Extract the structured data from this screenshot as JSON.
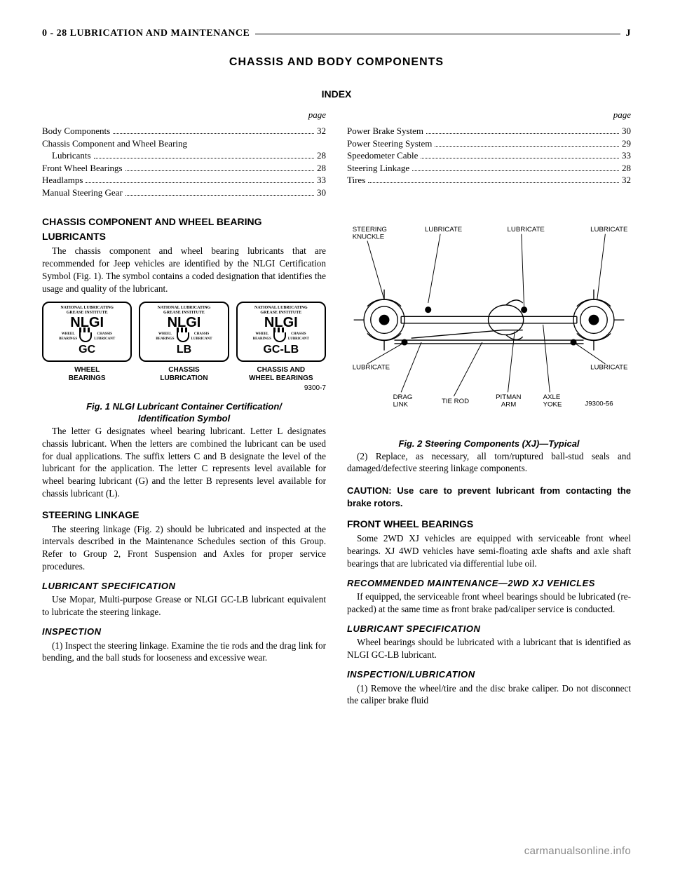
{
  "header": {
    "left": "0 - 28    LUBRICATION AND MAINTENANCE",
    "right": "J"
  },
  "title": "CHASSIS AND BODY COMPONENTS",
  "index_label": "INDEX",
  "page_label": "page",
  "index_left": [
    {
      "label": "Body Components",
      "page": "32",
      "indent": false
    },
    {
      "label": "Chassis Component and Wheel Bearing",
      "page": "",
      "indent": false
    },
    {
      "label": "Lubricants",
      "page": "28",
      "indent": true
    },
    {
      "label": "Front Wheel Bearings",
      "page": "28",
      "indent": false
    },
    {
      "label": "Headlamps",
      "page": "33",
      "indent": false
    },
    {
      "label": "Manual Steering Gear",
      "page": "30",
      "indent": false
    }
  ],
  "index_right": [
    {
      "label": "Power Brake System",
      "page": "30",
      "indent": false
    },
    {
      "label": "Power Steering System",
      "page": "29",
      "indent": false
    },
    {
      "label": "Speedometer Cable",
      "page": "33",
      "indent": false
    },
    {
      "label": "Steering Linkage",
      "page": "28",
      "indent": false
    },
    {
      "label": "Tires",
      "page": "32",
      "indent": false
    }
  ],
  "left_col": {
    "h1a": "CHASSIS COMPONENT AND WHEEL BEARING",
    "h1b": "LUBRICANTS",
    "p1": "The chassis component and wheel bearing lubricants that are recommended for Jeep vehicles are identified by the NLGI Certification Symbol (Fig. 1). The symbol contains a coded designation that identifies the usage and quality of the lubricant.",
    "nlgi": {
      "top_line1": "NATIONAL LUBRICATING",
      "top_line2": "GREASE INSTITUTE",
      "main": "NLGI",
      "mid_left": "WHEEL BEARINGS",
      "mid_right": "CHASSIS LUBRICANTS",
      "items": [
        {
          "code": "GC",
          "caption": "WHEEL\nBEARINGS"
        },
        {
          "code": "LB",
          "caption": "CHASSIS\nLUBRICATION"
        },
        {
          "code": "GC-LB",
          "caption": "CHASSIS AND\nWHEEL BEARINGS"
        }
      ],
      "id": "9300-7"
    },
    "fig1_caption": "Fig. 1 NLGI Lubricant Container Certification/\nIdentification Symbol",
    "p2": "The letter G designates wheel bearing lubricant. Letter L designates chassis lubricant. When the letters are combined the lubricant can be used for dual applications. The suffix letters C and B designate the level of the lubricant for the application. The letter C represents level available for wheel bearing lubricant (G) and the letter B represents level available for chassis lubricant (L).",
    "h2": "STEERING LINKAGE",
    "p3": "The steering linkage (Fig. 2) should be lubricated and inspected at the intervals described in the Maintenance Schedules section of this Group. Refer to Group 2, Front Suspension and Axles for proper service procedures.",
    "h3": "LUBRICANT SPECIFICATION",
    "p4": "Use Mopar, Multi-purpose Grease or NLGI GC-LB lubricant equivalent to lubricate the steering linkage.",
    "h4": "INSPECTION",
    "p5": "(1) Inspect the steering linkage. Examine the tie rods and the drag link for bending, and the ball studs for looseness and excessive wear."
  },
  "right_col": {
    "diagram": {
      "labels": {
        "steering_knuckle": "STEERING\nKNUCKLE",
        "lubricate": "LUBRICATE",
        "drag_link": "DRAG\nLINK",
        "tie_rod": "TIE ROD",
        "pitman_arm": "PITMAN\nARM",
        "axle_yoke": "AXLE\nYOKE",
        "id": "J9300-56"
      }
    },
    "fig2_caption": "Fig. 2 Steering Components (XJ)—Typical",
    "p1": "(2) Replace, as necessary, all torn/ruptured ball-stud seals and damaged/defective steering linkage components.",
    "caution": "CAUTION: Use care to prevent lubricant from contacting the brake rotors.",
    "h1": "FRONT WHEEL BEARINGS",
    "p2": "Some 2WD XJ vehicles are equipped with serviceable front wheel bearings. XJ 4WD vehicles have semi-floating axle shafts and axle shaft bearings that are lubricated via differential lube oil.",
    "h2": "RECOMMENDED MAINTENANCE—2WD XJ VEHICLES",
    "p3": "If equipped, the serviceable front wheel bearings should be lubricated (re-packed) at the same time as front brake pad/caliper service is conducted.",
    "h3": "LUBRICANT SPECIFICATION",
    "p4": "Wheel bearings should be lubricated with a lubricant that is identified as NLGI GC-LB lubricant.",
    "h4": "INSPECTION/LUBRICATION",
    "p5": "(1) Remove the wheel/tire and the disc brake caliper. Do not disconnect the caliper brake fluid"
  },
  "footer": "carmanualsonline.info"
}
